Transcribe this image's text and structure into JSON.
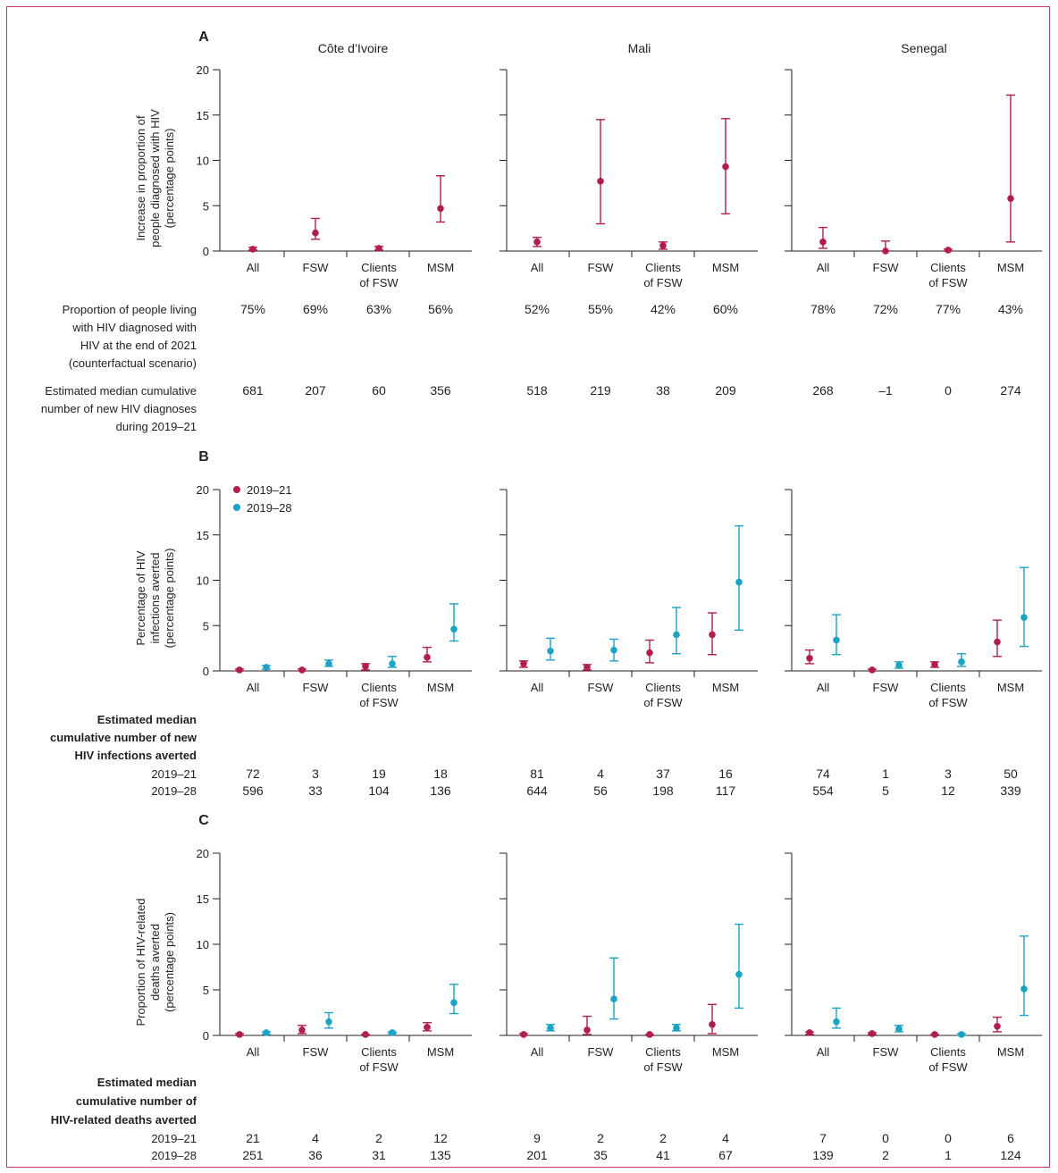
{
  "colors": {
    "y2019_21": "#b01d4e",
    "y2019_28": "#1ba3c6",
    "frame": "#c8336a"
  },
  "countries": [
    "Côte d’Ivoire",
    "Mali",
    "Senegal"
  ],
  "categories": [
    [
      "All"
    ],
    [
      "FSW"
    ],
    [
      "Clients",
      "of FSW"
    ],
    [
      "MSM"
    ]
  ],
  "legend": [
    {
      "label": "2019–21",
      "color_key": "y2019_21"
    },
    {
      "label": "2019–28",
      "color_key": "y2019_28"
    }
  ],
  "chart_data": [
    {
      "panel": "A",
      "type": "scatter",
      "ylabel": [
        "Increase in proportion of",
        "people diagnosed with HIV",
        "(percentage points)"
      ],
      "ylim": [
        0,
        20
      ],
      "yticks": [
        0,
        5,
        10,
        15,
        20
      ],
      "series": [
        {
          "color_key": "y2019_21",
          "values": {
            "Côte d’Ivoire": [
              [
                0.2,
                0.1,
                0.4
              ],
              [
                2.0,
                1.3,
                3.6
              ],
              [
                0.3,
                0.1,
                0.5
              ],
              [
                4.7,
                3.2,
                8.3
              ]
            ],
            "Mali": [
              [
                1.0,
                0.5,
                1.5
              ],
              [
                7.7,
                3.0,
                14.5
              ],
              [
                0.6,
                0.2,
                1.0
              ],
              [
                9.3,
                4.1,
                14.6
              ]
            ],
            "Senegal": [
              [
                1.0,
                0.3,
                2.6
              ],
              [
                0.0,
                -0.5,
                1.1
              ],
              [
                0.1,
                0.0,
                0.2
              ],
              [
                5.8,
                1.0,
                17.2
              ]
            ]
          }
        }
      ]
    },
    {
      "panel": "B",
      "type": "scatter",
      "ylabel": [
        "Percentage of HIV",
        "infections averted",
        "(percentage points)"
      ],
      "ylim": [
        0,
        20
      ],
      "yticks": [
        0,
        5,
        10,
        15,
        20
      ],
      "series": [
        {
          "name": "2019–21",
          "color_key": "y2019_21",
          "values": {
            "Côte d’Ivoire": [
              [
                0.1,
                0.0,
                0.2
              ],
              [
                0.1,
                0.0,
                0.2
              ],
              [
                0.5,
                0.1,
                0.8
              ],
              [
                1.5,
                1.0,
                2.6
              ]
            ],
            "Mali": [
              [
                0.8,
                0.4,
                1.1
              ],
              [
                0.4,
                0.1,
                0.7
              ],
              [
                2.0,
                0.9,
                3.4
              ],
              [
                4.0,
                1.8,
                6.4
              ]
            ],
            "Senegal": [
              [
                1.4,
                0.8,
                2.3
              ],
              [
                0.1,
                0.0,
                0.2
              ],
              [
                0.7,
                0.4,
                1.0
              ],
              [
                3.2,
                1.6,
                5.6
              ]
            ]
          }
        },
        {
          "name": "2019–28",
          "color_key": "y2019_28",
          "values": {
            "Côte d’Ivoire": [
              [
                0.4,
                0.2,
                0.6
              ],
              [
                0.8,
                0.5,
                1.2
              ],
              [
                0.8,
                0.4,
                1.6
              ],
              [
                4.6,
                3.3,
                7.4
              ]
            ],
            "Mali": [
              [
                2.2,
                1.2,
                3.6
              ],
              [
                2.3,
                1.1,
                3.5
              ],
              [
                4.0,
                1.9,
                7.0
              ],
              [
                9.8,
                4.5,
                16.0
              ]
            ],
            "Senegal": [
              [
                3.4,
                1.8,
                6.2
              ],
              [
                0.6,
                0.3,
                1.0
              ],
              [
                1.0,
                0.5,
                1.9
              ],
              [
                5.9,
                2.7,
                11.4
              ]
            ]
          }
        }
      ]
    },
    {
      "panel": "C",
      "type": "scatter",
      "ylabel": [
        "Proportion of HIV-related",
        "deaths averted",
        "(percentage points)"
      ],
      "ylim": [
        0,
        20
      ],
      "yticks": [
        0,
        5,
        10,
        15,
        20
      ],
      "series": [
        {
          "name": "2019–21",
          "color_key": "y2019_21",
          "values": {
            "Côte d’Ivoire": [
              [
                0.1,
                0.0,
                0.2
              ],
              [
                0.6,
                0.2,
                1.1
              ],
              [
                0.1,
                0.0,
                0.1
              ],
              [
                0.9,
                0.5,
                1.4
              ]
            ],
            "Mali": [
              [
                0.1,
                0.0,
                0.2
              ],
              [
                0.6,
                0.1,
                2.1
              ],
              [
                0.1,
                0.0,
                0.1
              ],
              [
                1.2,
                0.2,
                3.4
              ]
            ],
            "Senegal": [
              [
                0.3,
                0.1,
                0.4
              ],
              [
                0.2,
                0.1,
                0.3
              ],
              [
                0.1,
                0.0,
                0.1
              ],
              [
                1.0,
                0.4,
                2.0
              ]
            ]
          }
        },
        {
          "name": "2019–28",
          "color_key": "y2019_28",
          "values": {
            "Côte d’Ivoire": [
              [
                0.3,
                0.1,
                0.4
              ],
              [
                1.5,
                0.8,
                2.5
              ],
              [
                0.3,
                0.2,
                0.4
              ],
              [
                3.6,
                2.4,
                5.6
              ]
            ],
            "Mali": [
              [
                0.8,
                0.5,
                1.2
              ],
              [
                4.0,
                1.8,
                8.5
              ],
              [
                0.8,
                0.5,
                1.2
              ],
              [
                6.7,
                3.0,
                12.2
              ]
            ],
            "Senegal": [
              [
                1.5,
                0.8,
                3.0
              ],
              [
                0.7,
                0.4,
                1.1
              ],
              [
                0.1,
                0.0,
                0.2
              ],
              [
                5.1,
                2.2,
                10.9
              ]
            ]
          }
        }
      ]
    }
  ],
  "tables": {
    "A": [
      {
        "label": [
          "Proportion of people living",
          "with HIV diagnosed with",
          "HIV at the end of 2021",
          "(counterfactual scenario)"
        ],
        "bold": false,
        "values": [
          [
            "75%",
            "69%",
            "63%",
            "56%"
          ],
          [
            "52%",
            "55%",
            "42%",
            "60%"
          ],
          [
            "78%",
            "72%",
            "77%",
            "43%"
          ]
        ]
      },
      {
        "label": [
          "Estimated median cumulative",
          "number of new HIV diagnoses",
          "during 2019–21"
        ],
        "bold": false,
        "values": [
          [
            "681",
            "207",
            "60",
            "356"
          ],
          [
            "518",
            "219",
            "38",
            "209"
          ],
          [
            "268",
            "–1",
            "0",
            "274"
          ]
        ]
      }
    ],
    "B": {
      "heading": [
        "Estimated median",
        "cumulative number of new",
        "HIV infections averted"
      ],
      "rows": [
        {
          "label": "2019–21",
          "values": [
            [
              "72",
              "3",
              "19",
              "18"
            ],
            [
              "81",
              "4",
              "37",
              "16"
            ],
            [
              "74",
              "1",
              "3",
              "50"
            ]
          ]
        },
        {
          "label": "2019–28",
          "values": [
            [
              "596",
              "33",
              "104",
              "136"
            ],
            [
              "644",
              "56",
              "198",
              "117"
            ],
            [
              "554",
              "5",
              "12",
              "339"
            ]
          ]
        }
      ]
    },
    "C": {
      "heading": [
        "Estimated median",
        "cumulative number of",
        "HIV-related deaths averted"
      ],
      "rows": [
        {
          "label": "2019–21",
          "values": [
            [
              "21",
              "4",
              "2",
              "12"
            ],
            [
              "9",
              "2",
              "2",
              "4"
            ],
            [
              "7",
              "0",
              "0",
              "6"
            ]
          ]
        },
        {
          "label": "2019–28",
          "values": [
            [
              "251",
              "36",
              "31",
              "135"
            ],
            [
              "201",
              "35",
              "41",
              "67"
            ],
            [
              "139",
              "2",
              "1",
              "124"
            ]
          ]
        }
      ]
    }
  }
}
